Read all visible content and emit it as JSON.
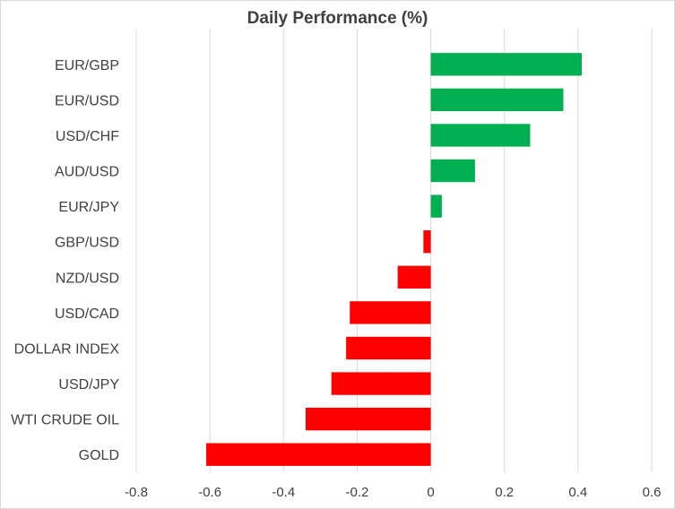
{
  "chart_data": {
    "type": "bar",
    "orientation": "horizontal",
    "title": "Daily Performance (%)",
    "xlabel": "",
    "ylabel": "",
    "categories": [
      "EUR/GBP",
      "EUR/USD",
      "USD/CHF",
      "AUD/USD",
      "EUR/JPY",
      "GBP/USD",
      "NZD/USD",
      "USD/CAD",
      "DOLLAR INDEX",
      "USD/JPY",
      "WTI CRUDE OIL",
      "GOLD"
    ],
    "values": [
      0.41,
      0.36,
      0.27,
      0.12,
      0.03,
      -0.02,
      -0.09,
      -0.22,
      -0.23,
      -0.27,
      -0.34,
      -0.61
    ],
    "xlim": [
      -0.8,
      0.6
    ],
    "xticks": [
      "-0.8",
      "-0.6",
      "-0.4",
      "-0.2",
      "0",
      "0.2",
      "0.4",
      "0.6"
    ],
    "grid": "vertical",
    "legend": "none",
    "colors": {
      "positive": "#00b050",
      "negative": "#ff0000",
      "grid": "#d9d9d9",
      "text": "#404040"
    }
  }
}
